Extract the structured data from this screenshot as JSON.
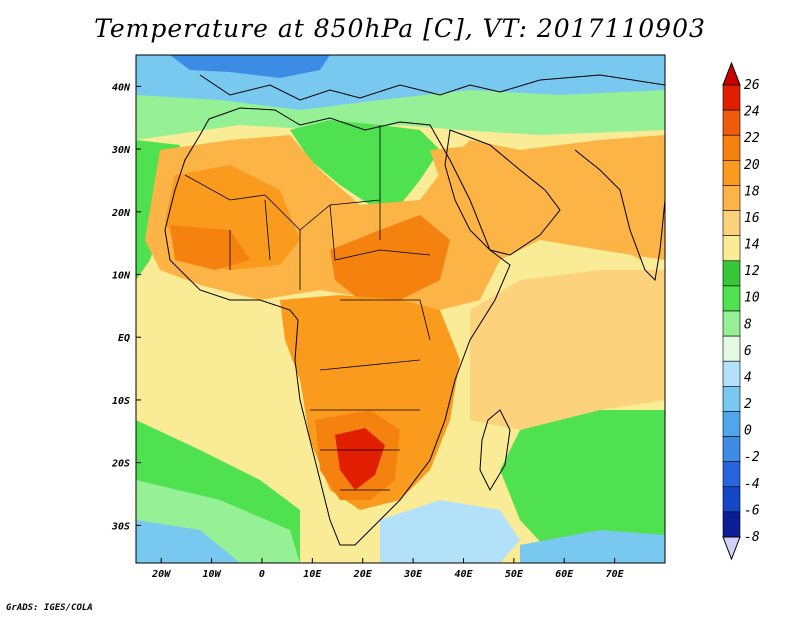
{
  "title": "Temperature at 850hPa [C], VT: 2017110903",
  "credit": "GrADS: IGES/COLA",
  "map": {
    "lon_range": [
      -25,
      80
    ],
    "lat_range": [
      -36,
      45
    ],
    "lat_ticks": [
      {
        "value": 40,
        "label": "40N"
      },
      {
        "value": 30,
        "label": "30N"
      },
      {
        "value": 20,
        "label": "20N"
      },
      {
        "value": 10,
        "label": "10N"
      },
      {
        "value": 0,
        "label": "EQ"
      },
      {
        "value": -10,
        "label": "10S"
      },
      {
        "value": -20,
        "label": "20S"
      },
      {
        "value": -30,
        "label": "30S"
      }
    ],
    "lon_ticks": [
      {
        "value": -20,
        "label": "20W"
      },
      {
        "value": -10,
        "label": "10W"
      },
      {
        "value": 0,
        "label": "0"
      },
      {
        "value": 10,
        "label": "10E"
      },
      {
        "value": 20,
        "label": "20E"
      },
      {
        "value": 30,
        "label": "30E"
      },
      {
        "value": 40,
        "label": "40E"
      },
      {
        "value": 50,
        "label": "50E"
      },
      {
        "value": 60,
        "label": "60E"
      },
      {
        "value": 70,
        "label": "70E"
      }
    ]
  },
  "colorbar": {
    "labels": [
      "26",
      "24",
      "22",
      "20",
      "18",
      "16",
      "14",
      "12",
      "10",
      "8",
      "6",
      "4",
      "2",
      "0",
      "-2",
      "-4",
      "-6",
      "-8"
    ],
    "colors_top_to_bottom": [
      "#e11e00",
      "#f05a0a",
      "#f5820f",
      "#fa9b1e",
      "#fdb446",
      "#fdd27d",
      "#faeb96",
      "#37c837",
      "#50e150",
      "#96f096",
      "#e1fae1",
      "#b4e1fa",
      "#78c8f0",
      "#50a5eb",
      "#3c8ce6",
      "#2864dc",
      "#1446c8",
      "#0a1e96",
      "#1e0a6e"
    ],
    "max_arrow_color": "#c80000",
    "min_arrow_color": "#d2d2fa"
  }
}
